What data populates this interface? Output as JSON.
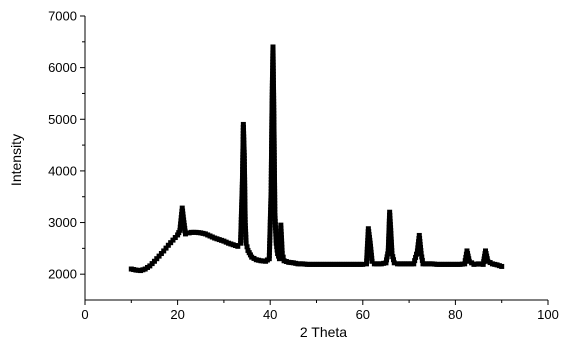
{
  "chart_data": {
    "type": "scatter",
    "xlabel": "2 Theta",
    "ylabel": "Intensity",
    "xlim": [
      0,
      100
    ],
    "ylim": [
      1500,
      7000
    ],
    "x_ticks": [
      0,
      20,
      40,
      60,
      80,
      100
    ],
    "y_ticks": [
      2000,
      3000,
      4000,
      5000,
      6000,
      7000
    ],
    "x_tick_labels": [
      "0",
      "20",
      "40",
      "60",
      "80",
      "100"
    ],
    "y_tick_labels": [
      "2000",
      "3000",
      "4000",
      "5000",
      "6000",
      "7000"
    ],
    "grid": false,
    "legend": "none",
    "marker": "filled-square",
    "connected": true,
    "series_color": "#000000",
    "series": [
      {
        "x": [
          10,
          11,
          12,
          13,
          14,
          15,
          16,
          17,
          18,
          19,
          20,
          20.5,
          21,
          21.3,
          21.7,
          22.5,
          23,
          24,
          25,
          26,
          27,
          28,
          29,
          30,
          31,
          32,
          33,
          33.6,
          34,
          34.2,
          34.4,
          34.6,
          34.8,
          35.2,
          36,
          37,
          38,
          39,
          39.8,
          40.2,
          40.4,
          40.6,
          40.8,
          41,
          41.3,
          41.6,
          42,
          42.3,
          42.6,
          43,
          44,
          45,
          46,
          47,
          48,
          49,
          50,
          51,
          52,
          53,
          54,
          55,
          56,
          57,
          58,
          59,
          60,
          60.8,
          61.2,
          61.6,
          62,
          62.5,
          63,
          64,
          65,
          65.5,
          65.8,
          66,
          66.3,
          66.8,
          67.5,
          68,
          69,
          70,
          71,
          71.8,
          72.2,
          72.6,
          73,
          74,
          75,
          76,
          77,
          78,
          79,
          80,
          81,
          82,
          82.5,
          83,
          84,
          85,
          86,
          86.5,
          87,
          88,
          89,
          90
        ],
        "y": [
          2100,
          2080,
          2070,
          2100,
          2160,
          2250,
          2350,
          2450,
          2560,
          2660,
          2760,
          2850,
          3280,
          3050,
          2780,
          2800,
          2810,
          2810,
          2800,
          2780,
          2740,
          2700,
          2670,
          2640,
          2600,
          2570,
          2540,
          2600,
          3800,
          4900,
          4300,
          3000,
          2600,
          2460,
          2330,
          2280,
          2260,
          2250,
          2300,
          3600,
          5300,
          6400,
          5000,
          3200,
          2600,
          2400,
          2300,
          2950,
          2400,
          2260,
          2230,
          2220,
          2200,
          2200,
          2190,
          2190,
          2190,
          2190,
          2190,
          2190,
          2190,
          2190,
          2190,
          2190,
          2190,
          2190,
          2190,
          2200,
          2880,
          2600,
          2250,
          2200,
          2200,
          2200,
          2220,
          2450,
          3200,
          2900,
          2400,
          2220,
          2200,
          2200,
          2200,
          2200,
          2200,
          2450,
          2750,
          2400,
          2200,
          2200,
          2200,
          2190,
          2190,
          2190,
          2190,
          2190,
          2190,
          2200,
          2450,
          2250,
          2190,
          2200,
          2190,
          2450,
          2250,
          2200,
          2180,
          2150
        ]
      }
    ]
  }
}
